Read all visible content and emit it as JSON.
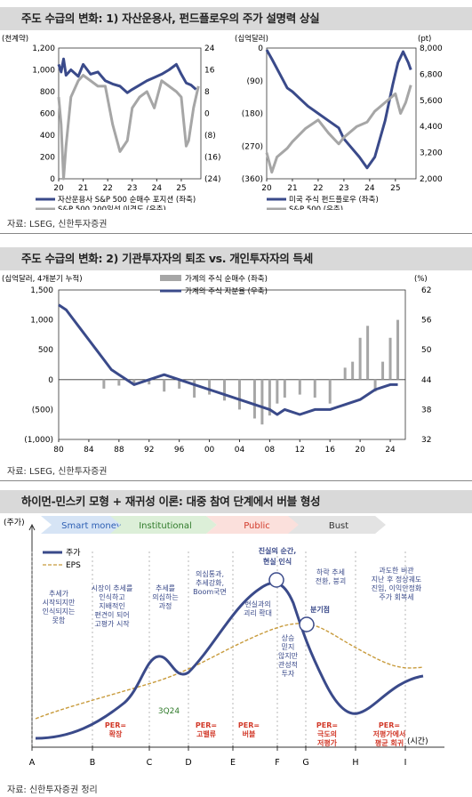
{
  "sections": {
    "s1_title": "주도 수급의 변화: 1) 자산운용사, 펀드플로우의 주가 설명력 상실",
    "s1_source": "자료: LSEG, 신한투자증권",
    "s2_title": "주도 수급의 변화: 2) 기관투자자의 퇴조 vs. 개인투자자의 득세",
    "s2_source": "자료: LSEG, 신한투자증권",
    "s3_title": "하이먼-민스키 모형 + 재귀성 이론: 대중 참여 단계에서 버블 형성",
    "s3_source": "자료: 신한투자증권 정리"
  },
  "chart_data": [
    {
      "type": "line",
      "left_unit": "(천계약)",
      "x_ticks": [
        "20",
        "21",
        "22",
        "23",
        "24",
        "25"
      ],
      "y_left_ticks": [
        "1,200",
        "1,000",
        "800",
        "600",
        "400",
        "200",
        "0"
      ],
      "y_right_ticks": [
        "24",
        "16",
        "8",
        "0",
        "(8)",
        "(16)",
        "(24)"
      ],
      "ylim_left": [
        0,
        1200
      ],
      "ylim_right": [
        -24,
        24
      ],
      "series": [
        {
          "name": "자산운용사 S&P 500 순매수 포지션 (좌축)",
          "axis": "left",
          "color": "#3a4a8a",
          "x": [
            2020.0,
            2020.1,
            2020.2,
            2020.3,
            2020.5,
            2020.8,
            2021.0,
            2021.3,
            2021.6,
            2021.9,
            2022.2,
            2022.5,
            2022.8,
            2023.0,
            2023.3,
            2023.6,
            2023.9,
            2024.2,
            2024.5,
            2024.8,
            2025.0,
            2025.2,
            2025.4,
            2025.6
          ],
          "y": [
            1050,
            980,
            1100,
            950,
            1000,
            940,
            1050,
            960,
            980,
            900,
            870,
            850,
            790,
            820,
            860,
            900,
            930,
            960,
            1000,
            1050,
            960,
            880,
            860,
            820
          ]
        },
        {
          "name": "S&P 500 200일선 이격도 (우축)",
          "axis": "right",
          "color": "#a6a6a6",
          "x": [
            2020.0,
            2020.1,
            2020.2,
            2020.3,
            2020.5,
            2020.8,
            2021.0,
            2021.3,
            2021.6,
            2021.9,
            2022.2,
            2022.5,
            2022.8,
            2023.0,
            2023.3,
            2023.6,
            2023.9,
            2024.2,
            2024.5,
            2024.8,
            2025.0,
            2025.2,
            2025.3,
            2025.5,
            2025.7
          ],
          "y": [
            6,
            -4,
            -24,
            -12,
            6,
            12,
            14,
            12,
            10,
            10,
            -4,
            -14,
            -10,
            2,
            6,
            8,
            2,
            12,
            10,
            8,
            6,
            -12,
            -10,
            2,
            10
          ]
        }
      ]
    },
    {
      "type": "line",
      "left_unit": "(십억달러)",
      "right_unit": "(pt)",
      "x_ticks": [
        "20",
        "21",
        "22",
        "23",
        "24",
        "25"
      ],
      "y_left_ticks": [
        "0",
        "(90)",
        "(180)",
        "(270)",
        "(360)"
      ],
      "y_right_ticks": [
        "8,000",
        "6,800",
        "5,600",
        "4,400",
        "3,200",
        "2,000"
      ],
      "ylim_left": [
        -360,
        0
      ],
      "ylim_right": [
        2000,
        8000
      ],
      "series": [
        {
          "name": "미국 주식 펀드플로우 (좌축)",
          "axis": "left",
          "color": "#3a4a8a",
          "x": [
            2020.0,
            2020.2,
            2020.5,
            2020.8,
            2021.0,
            2021.3,
            2021.6,
            2022.0,
            2022.4,
            2022.8,
            2023.0,
            2023.3,
            2023.6,
            2023.9,
            2024.2,
            2024.6,
            2024.9,
            2025.1,
            2025.3,
            2025.5,
            2025.6
          ],
          "y": [
            -5,
            -30,
            -70,
            -110,
            -120,
            -140,
            -160,
            -180,
            -200,
            -220,
            -250,
            -275,
            -300,
            -330,
            -300,
            -200,
            -100,
            -40,
            -10,
            -40,
            -60
          ]
        },
        {
          "name": "S&P 500 (우축)",
          "axis": "right",
          "color": "#a6a6a6",
          "x": [
            2020.0,
            2020.2,
            2020.4,
            2020.8,
            2021.0,
            2021.5,
            2022.0,
            2022.4,
            2022.8,
            2023.0,
            2023.5,
            2023.9,
            2024.2,
            2024.6,
            2025.0,
            2025.2,
            2025.4,
            2025.6
          ],
          "y": [
            3200,
            2300,
            3000,
            3400,
            3700,
            4300,
            4700,
            4100,
            3600,
            3900,
            4400,
            4600,
            5100,
            5500,
            5900,
            5000,
            5500,
            6300
          ]
        }
      ]
    },
    {
      "type": "bar+line",
      "left_unit": "(십억달러, 4개분기 누적)",
      "right_unit": "(%)",
      "x_ticks": [
        "80",
        "84",
        "88",
        "92",
        "96",
        "00",
        "04",
        "08",
        "12",
        "16",
        "20",
        "24"
      ],
      "y_left_ticks": [
        "1,500",
        "1,000",
        "500",
        "0",
        "(500)",
        "(1,000)"
      ],
      "y_right_ticks": [
        "62",
        "56",
        "50",
        "44",
        "38",
        "32"
      ],
      "ylim_left": [
        -1000,
        1500
      ],
      "ylim_right": [
        32,
        62
      ],
      "series": [
        {
          "name": "가계의 주식 순매수 (좌축)",
          "axis": "left",
          "type": "bar",
          "color": "#a6a6a6",
          "x": [
            1986,
            1988,
            1990,
            1992,
            1994,
            1996,
            1998,
            2000,
            2002,
            2004,
            2006,
            2007,
            2008,
            2009,
            2010,
            2012,
            2014,
            2016,
            2018,
            2019,
            2020,
            2021,
            2022,
            2023,
            2024,
            2025
          ],
          "y": [
            -150,
            -100,
            -60,
            -80,
            -200,
            -150,
            -300,
            -250,
            -350,
            -500,
            -650,
            -750,
            -600,
            -400,
            -300,
            -250,
            -300,
            -400,
            200,
            300,
            700,
            900,
            -200,
            300,
            700,
            1000
          ]
        },
        {
          "name": "가계의 주식 지분율 (우축)",
          "axis": "right",
          "type": "line",
          "color": "#3a4a8a",
          "x": [
            1980,
            1981,
            1982,
            1983,
            1984,
            1985,
            1986,
            1987,
            1988,
            1989,
            1990,
            1992,
            1994,
            1996,
            1998,
            2000,
            2002,
            2004,
            2006,
            2008,
            2009,
            2010,
            2012,
            2014,
            2016,
            2018,
            2020,
            2022,
            2024,
            2025
          ],
          "y": [
            59,
            58,
            56,
            54,
            52,
            50,
            48,
            46,
            45,
            44,
            43,
            44,
            45,
            44,
            43,
            42,
            41,
            40,
            39,
            38,
            37,
            38,
            37,
            38,
            38,
            39,
            40,
            42,
            43,
            43
          ]
        }
      ]
    },
    {
      "type": "line",
      "y_axis_label": "(주가)",
      "x_axis_label": "(시간)",
      "x_ticks": [
        "A",
        "B",
        "C",
        "D",
        "E",
        "F",
        "G",
        "H",
        "I"
      ],
      "phases": [
        "Smart money",
        "Institutional",
        "Public",
        "Bust"
      ],
      "series": [
        {
          "name": "주가",
          "color": "#3a4a8a"
        },
        {
          "name": "EPS",
          "color": "#c89b3c"
        }
      ],
      "annotations": {
        "a1": [
          "추세가",
          "시작되지만",
          "인식되지는",
          "못함"
        ],
        "a2": [
          "시장이 추세를",
          "인식하고",
          "지배적인",
          "편견이 되어",
          "고평가 시작"
        ],
        "a3": [
          "추세를",
          "의심하는",
          "과정"
        ],
        "a4": [
          "의심통과,",
          "추세강화,",
          "Boom국면"
        ],
        "a5": [
          "현실과의",
          "괴리 확대"
        ],
        "a6": [
          "진실의 순간,",
          "현실 인식"
        ],
        "a7": [
          "하락 추세",
          "전환, 붕괴"
        ],
        "a8": [
          "분기점"
        ],
        "a9": [
          "상승",
          "믿지",
          "않지만",
          "관성적",
          "투자"
        ],
        "a10": [
          "과도한 비관",
          "지난 후 정상궤도",
          "진입, 이익안정화",
          "주가 회복세"
        ],
        "q": "3Q24",
        "per1": [
          "PER=",
          "확장"
        ],
        "per2": [
          "PER=",
          "고밸류"
        ],
        "per3": [
          "PER=",
          "버블"
        ],
        "per4": [
          "PER=",
          "극도의",
          "저평가"
        ],
        "per5": [
          "PER=",
          "저평가에서",
          "평균 회귀"
        ]
      }
    }
  ]
}
